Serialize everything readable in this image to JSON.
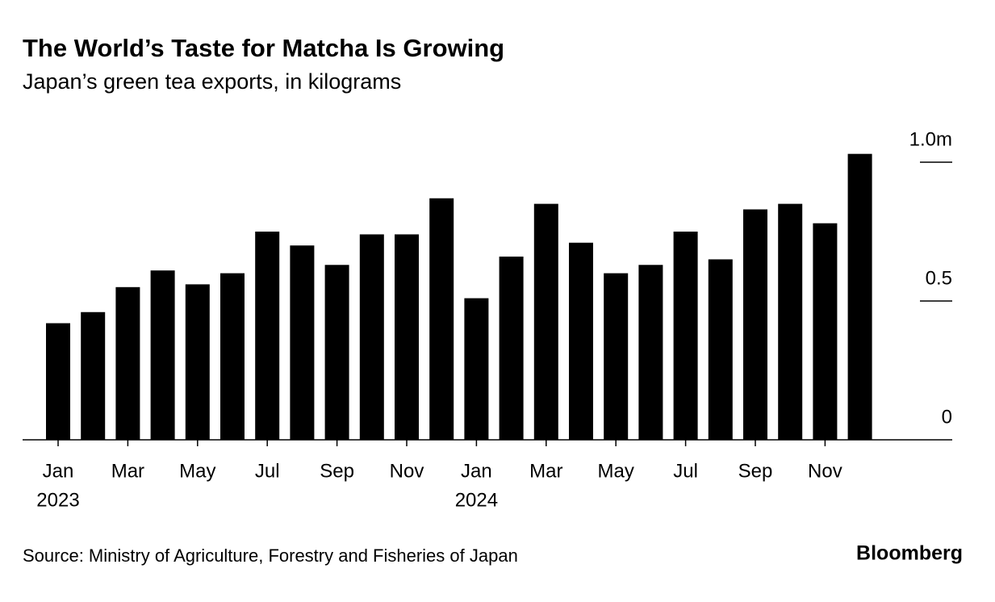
{
  "chart_data": {
    "type": "bar",
    "title": "The World’s Taste for Matcha Is Growing",
    "subtitle": "Japan’s green tea exports, in kilograms",
    "categories": [
      "Jan",
      null,
      "Mar",
      null,
      "May",
      null,
      "Jul",
      null,
      "Sep",
      null,
      "Nov",
      null,
      "Jan",
      null,
      "Mar",
      null,
      "May",
      null,
      "Jul",
      null,
      "Sep",
      null,
      "Nov",
      null
    ],
    "years": [
      "2023",
      "2024"
    ],
    "values": [
      0.42,
      0.46,
      0.55,
      0.61,
      0.56,
      0.6,
      0.75,
      0.7,
      0.63,
      0.74,
      0.74,
      0.87,
      0.51,
      0.66,
      0.85,
      0.71,
      0.6,
      0.63,
      0.75,
      0.65,
      0.83,
      0.85,
      0.78,
      1.03
    ],
    "color": "#000000",
    "ylim": [
      0,
      1.05
    ],
    "yticks": [
      0,
      0.5,
      {
        "value": 1,
        "label": "1.0m"
      }
    ],
    "grid": true,
    "source": "Source: Ministry of Agriculture, Forestry and Fisheries of Japan",
    "brand": "Bloomberg"
  }
}
